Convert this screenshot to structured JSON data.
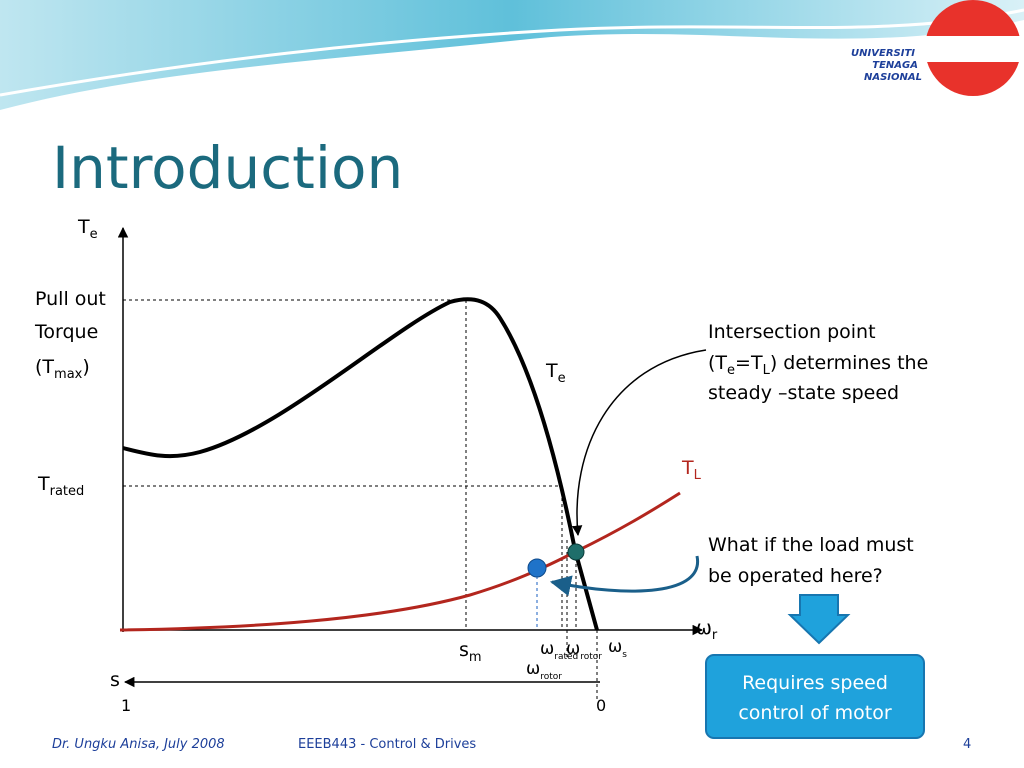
{
  "header": {
    "title": "Introduction",
    "logo": [
      "UNIVERSITI",
      "TENAGA",
      "NASIONAL"
    ]
  },
  "diagram": {
    "y_axis": {
      "main": "T",
      "sub": "e"
    },
    "x_axis": {
      "main": "ω",
      "sub": "r"
    },
    "pullout": {
      "line1": "Pull out",
      "line2": "Torque",
      "pre": "(T",
      "sub": "max",
      "post": ")"
    },
    "rated": {
      "main": "T",
      "sub": "rated"
    },
    "te_curve": {
      "main": "T",
      "sub": "e"
    },
    "tl_curve": {
      "main": "T",
      "sub": "L"
    },
    "sm": {
      "main": "s",
      "sub": "m"
    },
    "w_rated": {
      "main": "ω",
      "sub": "rated"
    },
    "w_rotor_top": {
      "main": "ω",
      "sub": "rotor"
    },
    "w_s": {
      "main": "ω",
      "sub": "s"
    },
    "w_rotor": {
      "main": "ω",
      "sub": "rotor"
    },
    "s_axis": {
      "label": "s",
      "left": "1",
      "right": "0"
    },
    "note1": {
      "line1": "Intersection point",
      "pre": "(T",
      "sub1": "e",
      "mid": "=T",
      "sub2": "L",
      "post": ") determines the",
      "line3": "steady –state speed"
    },
    "note2": [
      "What if the load must",
      "be operated here?"
    ],
    "box": [
      "Requires speed",
      "control of motor"
    ]
  },
  "footer": {
    "author": "Dr. Ungku Anisa, July 2008",
    "course": "EEEB443 - Control & Drives",
    "page": "4"
  }
}
